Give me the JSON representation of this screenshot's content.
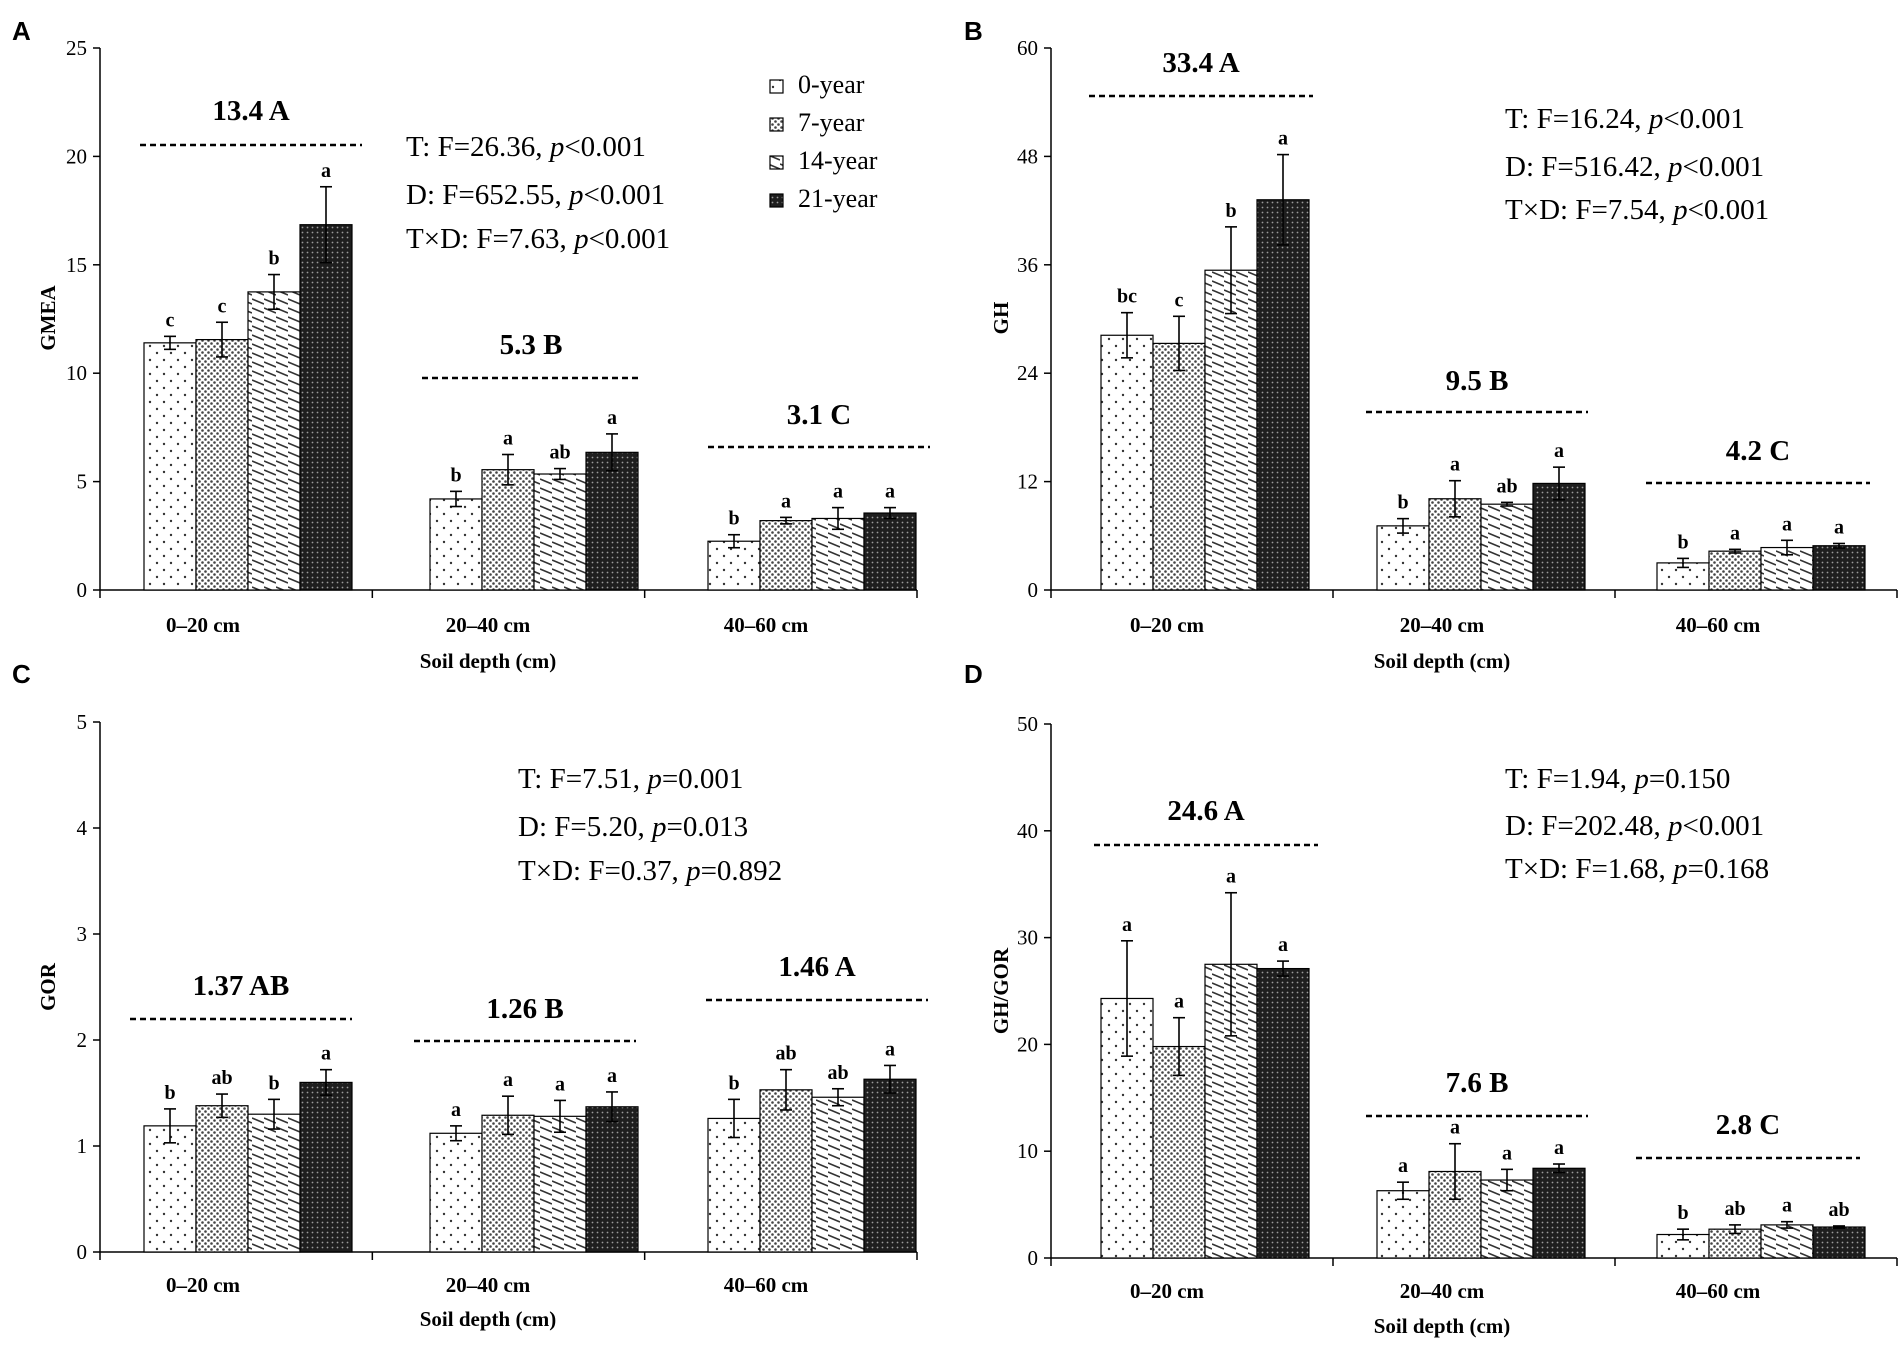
{
  "colors": {
    "bar_stroke": "#000000",
    "bar_fill": "#ffffff",
    "pattern_dark": "#333333",
    "pattern_light": "#555555"
  },
  "legend": {
    "entries": [
      "0-year",
      "7-year",
      "14-year",
      "21-year"
    ]
  },
  "chart_data": [
    {
      "type": "bar",
      "panel": "A",
      "title": "",
      "xlabel": "Soil depth (cm)",
      "ylabel": "GMEA",
      "ylim": [
        0,
        25
      ],
      "yticks": [
        0,
        5,
        10,
        15,
        20,
        25
      ],
      "categories": [
        "0–20 cm",
        "20–40 cm",
        "40–60 cm"
      ],
      "series": [
        {
          "name": "0-year",
          "values": [
            11.4,
            4.2,
            2.25
          ],
          "errors": [
            0.3,
            0.35,
            0.3
          ],
          "sig": [
            "c",
            "b",
            "b"
          ]
        },
        {
          "name": "7-year",
          "values": [
            11.55,
            5.55,
            3.2
          ],
          "errors": [
            0.8,
            0.7,
            0.15
          ],
          "sig": [
            "c",
            "a",
            "a"
          ]
        },
        {
          "name": "14-year",
          "values": [
            13.75,
            5.35,
            3.3
          ],
          "errors": [
            0.8,
            0.25,
            0.5
          ],
          "sig": [
            "b",
            "ab",
            "a"
          ]
        },
        {
          "name": "21-year",
          "values": [
            16.85,
            6.35,
            3.55
          ],
          "errors": [
            1.75,
            0.85,
            0.25
          ],
          "sig": [
            "a",
            "a",
            "a"
          ]
        }
      ],
      "group_means": [
        "13.4 A",
        "5.3 B",
        "3.1 C"
      ],
      "stats": [
        {
          "pre": "T: F=26.36, ",
          "p": "p",
          "post": "<0.001"
        },
        {
          "pre": "D: F=652.55, ",
          "p": "p",
          "post": "<0.001"
        },
        {
          "pre": "T×D: F=7.63, ",
          "p": "p",
          "post": "<0.001"
        }
      ]
    },
    {
      "type": "bar",
      "panel": "B",
      "title": "",
      "xlabel": "Soil depth (cm)",
      "ylabel": "GH",
      "ylim": [
        0,
        60
      ],
      "yticks": [
        0,
        12,
        24,
        36,
        48,
        60
      ],
      "categories": [
        "0–20 cm",
        "20–40 cm",
        "40–60 cm"
      ],
      "series": [
        {
          "name": "0-year",
          "values": [
            28.2,
            7.1,
            3.0
          ],
          "errors": [
            2.5,
            0.8,
            0.5
          ],
          "sig": [
            "bc",
            "b",
            "b"
          ]
        },
        {
          "name": "7-year",
          "values": [
            27.3,
            10.1,
            4.3
          ],
          "errors": [
            3.0,
            2.0,
            0.2
          ],
          "sig": [
            "c",
            "a",
            "a"
          ]
        },
        {
          "name": "14-year",
          "values": [
            35.4,
            9.5,
            4.7
          ],
          "errors": [
            4.8,
            0.2,
            0.8
          ],
          "sig": [
            "b",
            "ab",
            "a"
          ]
        },
        {
          "name": "21-year",
          "values": [
            43.2,
            11.8,
            4.9
          ],
          "errors": [
            5.0,
            1.8,
            0.25
          ],
          "sig": [
            "a",
            "a",
            "a"
          ]
        }
      ],
      "group_means": [
        "33.4 A",
        "9.5 B",
        "4.2 C"
      ],
      "stats": [
        {
          "pre": "T: F=16.24, ",
          "p": "p",
          "post": "<0.001"
        },
        {
          "pre": "D: F=516.42, ",
          "p": "p",
          "post": "<0.001"
        },
        {
          "pre": "T×D: F=7.54, ",
          "p": "p",
          "post": "<0.001"
        }
      ]
    },
    {
      "type": "bar",
      "panel": "C",
      "title": "",
      "xlabel": "Soil depth (cm)",
      "ylabel": "GOR",
      "ylim": [
        0,
        5
      ],
      "yticks": [
        0,
        1,
        2,
        3,
        4,
        5
      ],
      "categories": [
        "0–20 cm",
        "20–40 cm",
        "40–60 cm"
      ],
      "series": [
        {
          "name": "0-year",
          "values": [
            1.19,
            1.12,
            1.26
          ],
          "errors": [
            0.16,
            0.07,
            0.18
          ],
          "sig": [
            "b",
            "a",
            "b"
          ]
        },
        {
          "name": "7-year",
          "values": [
            1.38,
            1.29,
            1.53
          ],
          "errors": [
            0.11,
            0.18,
            0.19
          ],
          "sig": [
            "ab",
            "a",
            "ab"
          ]
        },
        {
          "name": "14-year",
          "values": [
            1.3,
            1.28,
            1.46
          ],
          "errors": [
            0.14,
            0.15,
            0.08
          ],
          "sig": [
            "b",
            "a",
            "ab"
          ]
        },
        {
          "name": "21-year",
          "values": [
            1.6,
            1.37,
            1.63
          ],
          "errors": [
            0.12,
            0.14,
            0.13
          ],
          "sig": [
            "a",
            "a",
            "a"
          ]
        }
      ],
      "group_means": [
        "1.37 AB",
        "1.26 B",
        "1.46 A"
      ],
      "stats": [
        {
          "pre": "T: F=7.51, ",
          "p": "p",
          "post": "=0.001"
        },
        {
          "pre": "D: F=5.20, ",
          "p": "p",
          "post": "=0.013"
        },
        {
          "pre": "T×D: F=0.37, ",
          "p": "p",
          "post": "=0.892"
        }
      ]
    },
    {
      "type": "bar",
      "panel": "D",
      "title": "",
      "xlabel": "Soil depth (cm)",
      "ylabel": "GH/GOR",
      "ylim": [
        0,
        50
      ],
      "yticks": [
        0,
        10,
        20,
        30,
        40,
        50
      ],
      "categories": [
        "0–20 cm",
        "20–40 cm",
        "40–60 cm"
      ],
      "series": [
        {
          "name": "0-year",
          "values": [
            24.3,
            6.3,
            2.2
          ],
          "errors": [
            5.4,
            0.8,
            0.5
          ],
          "sig": [
            "a",
            "a",
            "b"
          ]
        },
        {
          "name": "7-year",
          "values": [
            19.8,
            8.1,
            2.7
          ],
          "errors": [
            2.7,
            2.6,
            0.4
          ],
          "sig": [
            "a",
            "a",
            "ab"
          ]
        },
        {
          "name": "14-year",
          "values": [
            27.5,
            7.3,
            3.1
          ],
          "errors": [
            6.7,
            1.0,
            0.3
          ],
          "sig": [
            "a",
            "a",
            "a"
          ]
        },
        {
          "name": "21-year",
          "values": [
            27.1,
            8.4,
            2.9
          ],
          "errors": [
            0.7,
            0.4,
            0.1
          ],
          "sig": [
            "a",
            "a",
            "ab"
          ]
        }
      ],
      "group_means": [
        "24.6 A",
        "7.6 B",
        "2.8 C"
      ],
      "stats": [
        {
          "pre": "T: F=1.94, ",
          "p": "p",
          "post": "=0.150"
        },
        {
          "pre": "D: F=202.48, ",
          "p": "p",
          "post": "<0.001"
        },
        {
          "pre": "T×D: F=1.68, ",
          "p": "p",
          "post": "=0.168"
        }
      ]
    }
  ]
}
